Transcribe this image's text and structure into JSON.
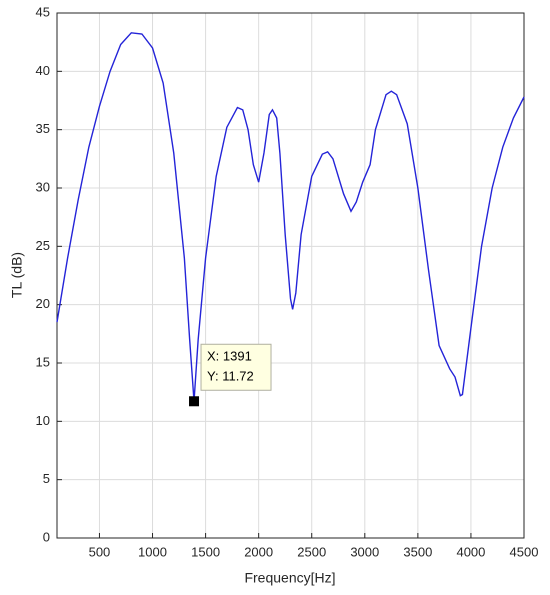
{
  "chart_data": {
    "type": "line",
    "xlabel": "Frequency[Hz]",
    "ylabel": "TL (dB)",
    "x": [
      100,
      200,
      300,
      400,
      500,
      600,
      700,
      800,
      900,
      1000,
      1100,
      1200,
      1300,
      1350,
      1391,
      1430,
      1500,
      1600,
      1700,
      1800,
      1850,
      1900,
      1950,
      2000,
      2050,
      2100,
      2130,
      2170,
      2200,
      2250,
      2300,
      2320,
      2350,
      2400,
      2500,
      2600,
      2650,
      2700,
      2800,
      2870,
      2920,
      2980,
      3050,
      3100,
      3200,
      3250,
      3300,
      3400,
      3500,
      3600,
      3700,
      3800,
      3850,
      3900,
      3920,
      4000,
      4100,
      4200,
      4300,
      4400,
      4500
    ],
    "values": [
      18.5,
      24,
      29,
      33.5,
      37,
      40,
      42.3,
      43.3,
      43.2,
      42,
      39,
      33,
      24,
      17,
      11.72,
      17,
      24,
      31,
      35.2,
      36.9,
      36.7,
      35,
      32,
      30.5,
      33,
      36.3,
      36.7,
      36,
      33,
      26,
      20.5,
      19.6,
      21,
      26,
      31,
      32.9,
      33.1,
      32.5,
      29.5,
      28,
      28.8,
      30.5,
      32,
      35,
      38,
      38.3,
      38,
      35.5,
      30,
      23,
      16.5,
      14.5,
      13.8,
      12.2,
      12.3,
      18,
      25,
      30,
      33.5,
      36,
      37.8
    ],
    "color": "#2424d8",
    "xlim": [
      100,
      4500
    ],
    "xticks": [
      500,
      1000,
      1500,
      2000,
      2500,
      3000,
      3500,
      4000,
      4500
    ],
    "ylim": [
      0,
      45
    ],
    "yticks": [
      0,
      5,
      10,
      15,
      20,
      25,
      30,
      35,
      40,
      45
    ],
    "grid": true,
    "annotations": [
      {
        "x": 1391,
        "y": 11.72,
        "label_x": "X: 1391",
        "label_y": "Y: 11.72"
      }
    ]
  }
}
